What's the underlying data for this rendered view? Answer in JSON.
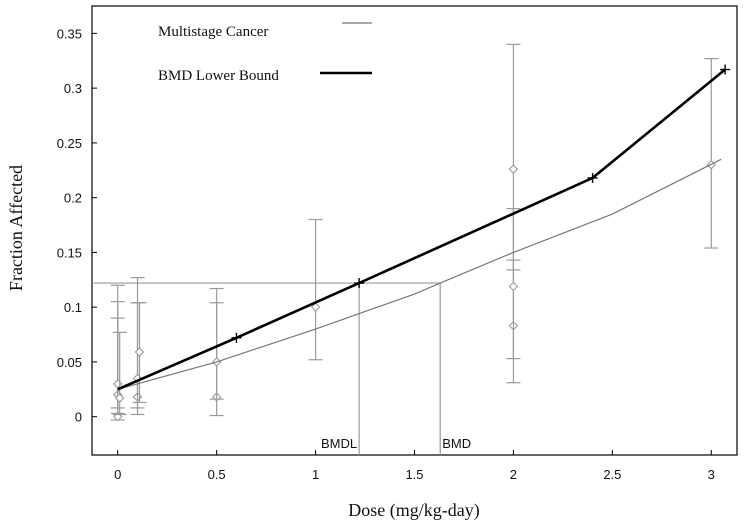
{
  "chart_data": {
    "type": "line",
    "xlabel": "Dose (mg/kg-day)",
    "ylabel": "Fraction Affected",
    "xlim": [
      -0.13,
      3.13
    ],
    "ylim": [
      -0.035,
      0.375
    ],
    "x_ticks": [
      0,
      0.5,
      1,
      1.5,
      2,
      2.5,
      3
    ],
    "x_tick_labels": [
      "0",
      "0.5",
      "1",
      "1.5",
      "2",
      "2.5",
      "3"
    ],
    "y_ticks": [
      0,
      0.05,
      0.1,
      0.15,
      0.2,
      0.25,
      0.3,
      0.35
    ],
    "y_tick_labels": [
      "0",
      "0.05",
      "0.1",
      "0.15",
      "0.2",
      "0.25",
      "0.3",
      "0.35"
    ],
    "grid": false,
    "legend_position": "top-left",
    "series": [
      {
        "name": "Multistage Cancer",
        "style": "thin",
        "color": "#777777",
        "x": [
          0,
          0.1,
          0.5,
          1,
          1.5,
          1.63,
          2,
          2.5,
          3.05
        ],
        "y": [
          0.025,
          0.03,
          0.05,
          0.08,
          0.112,
          0.122,
          0.15,
          0.185,
          0.235
        ]
      },
      {
        "name": "BMD Lower Bound",
        "style": "thick",
        "color": "#000000",
        "x": [
          0,
          0.6,
          1.22,
          2.4,
          3.07
        ],
        "y": [
          0.025,
          0.072,
          0.122,
          0.218,
          0.317
        ]
      }
    ],
    "observations": [
      {
        "x": 0,
        "y": 0.0,
        "lo": -0.003,
        "hi": 0.09
      },
      {
        "x": 0,
        "y": 0.02,
        "lo": 0.003,
        "hi": 0.105
      },
      {
        "x": 0,
        "y": 0.03,
        "lo": 0.008,
        "hi": 0.12
      },
      {
        "x": 0.01,
        "y": 0.017,
        "lo": 0.002,
        "hi": 0.077
      },
      {
        "x": 0.1,
        "y": 0.018,
        "lo": 0.002,
        "hi": 0.104
      },
      {
        "x": 0.1,
        "y": 0.035,
        "lo": 0.008,
        "hi": 0.127
      },
      {
        "x": 0.11,
        "y": 0.059,
        "lo": 0.013,
        "hi": 0.104
      },
      {
        "x": 0.5,
        "y": 0.018,
        "lo": 0.001,
        "hi": 0.104
      },
      {
        "x": 0.5,
        "y": 0.05,
        "lo": 0.016,
        "hi": 0.117
      },
      {
        "x": 1,
        "y": 0.1,
        "lo": 0.052,
        "hi": 0.18
      },
      {
        "x": 2,
        "y": 0.083,
        "lo": 0.031,
        "hi": 0.143
      },
      {
        "x": 2,
        "y": 0.119,
        "lo": 0.053,
        "hi": 0.19
      },
      {
        "x": 2,
        "y": 0.226,
        "lo": 0.134,
        "hi": 0.34
      },
      {
        "x": 3,
        "y": 0.23,
        "lo": 0.154,
        "hi": 0.327
      }
    ],
    "bmr_level": 0.122,
    "bmdl": 1.22,
    "bmd": 1.63,
    "marker_labels": {
      "bmdl": "BMDL",
      "bmd": "BMD"
    }
  }
}
